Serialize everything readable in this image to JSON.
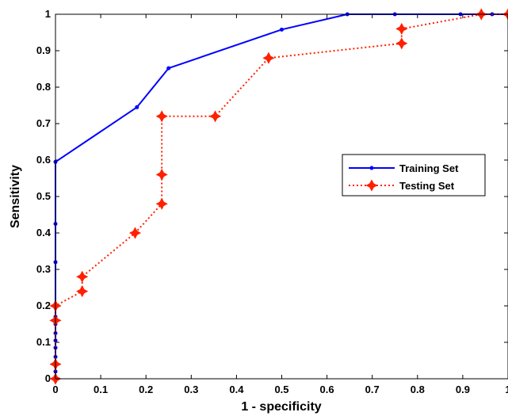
{
  "chart_data": {
    "type": "line",
    "xlabel": "1 - specificity",
    "ylabel": "Sensitivity",
    "xlim": [
      0,
      1
    ],
    "ylim": [
      0,
      1
    ],
    "xticks": [
      "0",
      "0.1",
      "0.2",
      "0.3",
      "0.4",
      "0.5",
      "0.6",
      "0.7",
      "0.8",
      "0.9",
      "1"
    ],
    "yticks": [
      "0",
      "0.1",
      "0.2",
      "0.3",
      "0.4",
      "0.5",
      "0.6",
      "0.7",
      "0.8",
      "0.9",
      "1"
    ],
    "grid": false,
    "legend": {
      "position": "right"
    },
    "series": [
      {
        "name": "Training Set",
        "color": "#0000ff",
        "line": "solid",
        "marker": "dot",
        "x": [
          0,
          0,
          0,
          0,
          0,
          0,
          0,
          0,
          0,
          0,
          0,
          0,
          0.18,
          0.25,
          0.5,
          0.645,
          0.75,
          0.895,
          0.94,
          0.965,
          1
        ],
        "y": [
          0,
          0.02,
          0.04,
          0.06,
          0.085,
          0.105,
          0.125,
          0.15,
          0.17,
          0.32,
          0.425,
          0.595,
          0.745,
          0.852,
          0.958,
          1,
          1,
          1,
          1,
          1,
          1
        ]
      },
      {
        "name": "Testing Set",
        "color": "#ff2000",
        "line": "dotted",
        "marker": "star",
        "x": [
          0,
          0,
          0,
          0,
          0.059,
          0.059,
          0.176,
          0.235,
          0.235,
          0.235,
          0.353,
          0.471,
          0.765,
          0.765,
          0.941,
          1
        ],
        "y": [
          0,
          0.04,
          0.16,
          0.2,
          0.24,
          0.28,
          0.4,
          0.48,
          0.56,
          0.72,
          0.72,
          0.88,
          0.92,
          0.96,
          1,
          1
        ]
      }
    ]
  }
}
